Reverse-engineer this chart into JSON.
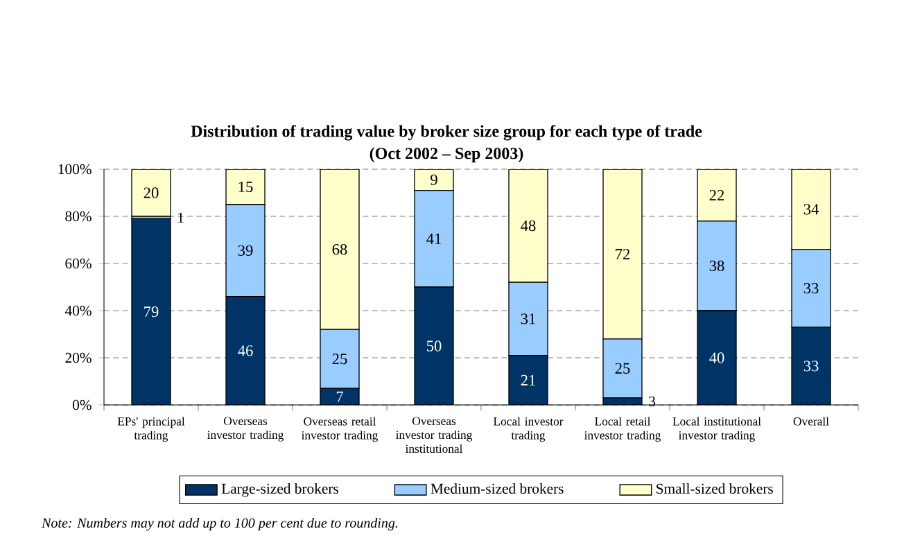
{
  "chart_data": {
    "type": "bar",
    "stacked": true,
    "title": "Distribution of trading value by broker size group for each type of trade",
    "subtitle": "(Oct 2002 – Sep 2003)",
    "categories": [
      "EPs' principal trading",
      "Overseas investor trading",
      "Overseas retail investor trading",
      "Overseas investor trading institutional",
      "Local investor trading",
      "Local retail investor trading",
      "Local institutional investor trading",
      "Overall"
    ],
    "series": [
      {
        "name": "Large-sized brokers",
        "color": "#003366",
        "values": [
          79,
          46,
          7,
          50,
          21,
          3,
          40,
          33
        ]
      },
      {
        "name": "Medium-sized brokers",
        "color": "#99ccff",
        "values": [
          1,
          39,
          25,
          41,
          31,
          25,
          38,
          33
        ]
      },
      {
        "name": "Small-sized brokers",
        "color": "#ffffcc",
        "values": [
          20,
          15,
          68,
          9,
          48,
          72,
          22,
          34
        ]
      }
    ],
    "ylim": [
      0,
      100
    ],
    "yticks": [
      {
        "value": 0,
        "label": "0%"
      },
      {
        "value": 20,
        "label": "20%"
      },
      {
        "value": 40,
        "label": "40%"
      },
      {
        "value": 60,
        "label": "60%"
      },
      {
        "value": 80,
        "label": "80%"
      },
      {
        "value": 100,
        "label": "100%"
      }
    ],
    "grid": "y",
    "legend": "bottom",
    "data_labels": true,
    "annotations": [
      "Note: Numbers may not add up to 100 per cent due to rounding."
    ]
  }
}
